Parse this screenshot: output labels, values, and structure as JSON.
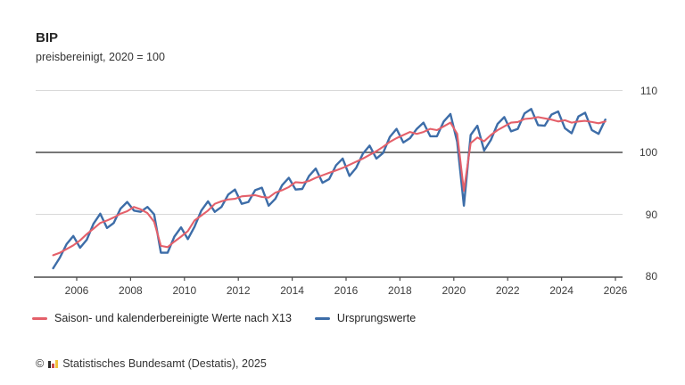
{
  "header": {
    "title": "BIP",
    "subtitle": "preisbereinigt, 2020 = 100"
  },
  "chart_data": {
    "type": "line",
    "title": "BIP",
    "subtitle": "preisbereinigt, 2020 = 100",
    "x_frequency": "quarterly",
    "x_start_year": 2005,
    "x_axis_ticks": [
      2006,
      2008,
      2010,
      2012,
      2014,
      2016,
      2018,
      2020,
      2022,
      2024,
      2026
    ],
    "y_axis_ticks": [
      80,
      90,
      100,
      110
    ],
    "ylim": [
      80,
      110
    ],
    "reference_line": 100,
    "grid": "horizontal",
    "legend_position": "bottom",
    "series": [
      {
        "name": "Ursprungswerte",
        "color": "#3d6da8",
        "values": [
          81.3,
          83.0,
          85.2,
          86.5,
          84.6,
          85.9,
          88.5,
          90.1,
          87.8,
          88.6,
          90.9,
          92.0,
          90.6,
          90.4,
          91.2,
          90.0,
          83.8,
          83.8,
          86.4,
          87.9,
          86.0,
          88.0,
          90.6,
          92.1,
          90.4,
          91.2,
          93.2,
          94.0,
          91.7,
          92.0,
          93.9,
          94.3,
          91.4,
          92.5,
          94.7,
          95.9,
          94.0,
          94.1,
          96.2,
          97.4,
          95.1,
          95.7,
          97.9,
          99.0,
          96.2,
          97.5,
          99.8,
          101.1,
          99.0,
          99.9,
          102.5,
          103.8,
          101.6,
          102.3,
          103.8,
          104.8,
          102.6,
          102.6,
          105.0,
          106.2,
          101.7,
          91.4,
          102.8,
          104.3,
          100.3,
          102.0,
          104.6,
          105.7,
          103.4,
          103.8,
          106.3,
          107.0,
          104.4,
          104.3,
          106.1,
          106.6,
          103.9,
          103.1,
          105.8,
          106.4,
          103.6,
          103.0,
          105.3
        ]
      },
      {
        "name": "Saison- und kalenderbereinigte Werte nach X13",
        "color": "#e4606a",
        "values": [
          83.4,
          83.8,
          84.4,
          85.0,
          85.8,
          86.8,
          87.7,
          88.6,
          89.0,
          89.5,
          90.1,
          90.5,
          91.2,
          90.8,
          90.2,
          88.8,
          84.9,
          84.7,
          85.6,
          86.4,
          87.3,
          89.0,
          89.8,
          90.6,
          91.7,
          92.1,
          92.4,
          92.5,
          92.9,
          93.0,
          93.1,
          92.8,
          92.7,
          93.5,
          93.9,
          94.4,
          95.2,
          95.1,
          95.4,
          95.9,
          96.3,
          96.7,
          97.1,
          97.5,
          98.0,
          98.5,
          99.0,
          99.6,
          100.2,
          100.9,
          101.7,
          102.3,
          102.8,
          103.3,
          103.0,
          103.3,
          103.8,
          103.6,
          104.2,
          104.8,
          103.0,
          93.8,
          101.5,
          102.4,
          101.8,
          102.8,
          103.6,
          104.2,
          104.8,
          104.9,
          105.4,
          105.5,
          105.7,
          105.5,
          105.3,
          105.0,
          105.2,
          104.8,
          105.0,
          105.1,
          104.9,
          104.7,
          105.0
        ]
      }
    ]
  },
  "legend": {
    "items": [
      {
        "label": "Saison- und kalenderbereinigte Werte nach X13",
        "color": "#e4606a"
      },
      {
        "label": "Ursprungswerte",
        "color": "#3d6da8"
      }
    ]
  },
  "footer": {
    "copyright": "©",
    "source": "Statistisches Bundesamt (Destatis), 2025",
    "logo_bar_colors": [
      "#2b2b2b",
      "#c94b4b",
      "#f2c33c"
    ]
  },
  "colors": {
    "grid_light": "#d9d9d9",
    "axis_dark": "#4a4a4a",
    "text": "#262626"
  }
}
